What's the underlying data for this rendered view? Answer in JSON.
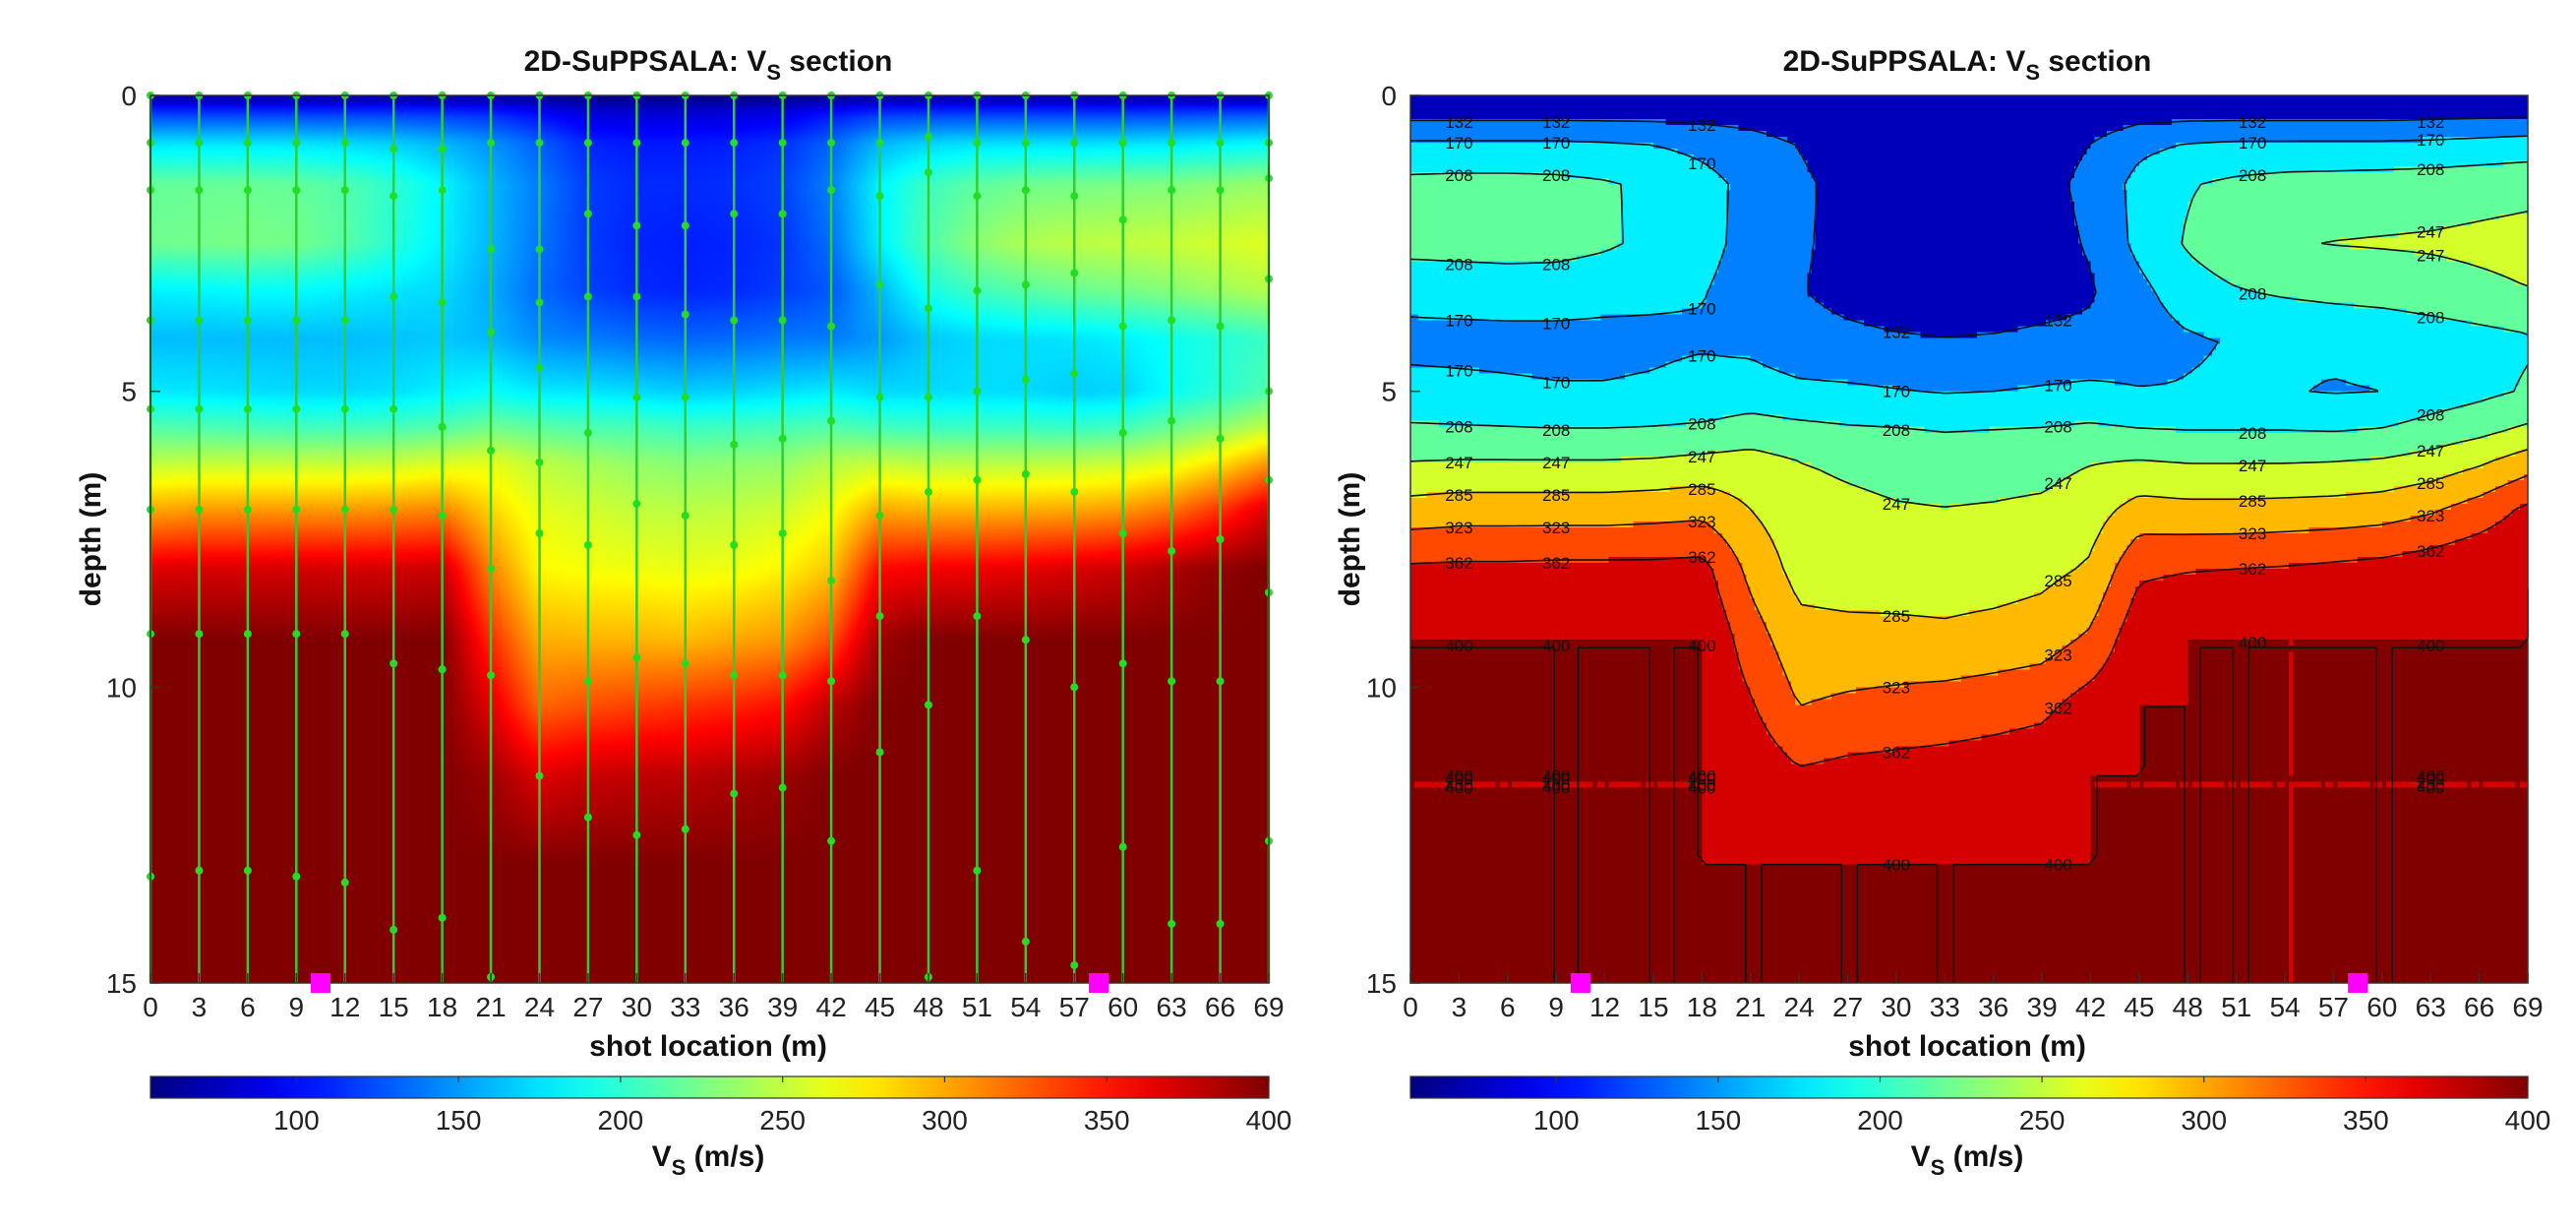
{
  "figure": {
    "panels": [
      {
        "id": "left",
        "title_main": "2D-SuPPSALA: V",
        "title_sub": "S",
        "title_tail": " section",
        "style": "smooth",
        "xlabel": "shot location (m)",
        "ylabel": "depth (m)",
        "colorbar_label_main": "V",
        "colorbar_label_sub": "S",
        "colorbar_label_tail": " (m/s)"
      },
      {
        "id": "right",
        "title_main": "2D-SuPPSALA: V",
        "title_sub": "S",
        "title_tail": " section",
        "style": "contour",
        "xlabel": "shot location (m)",
        "ylabel": "depth (m)",
        "colorbar_label_main": "V",
        "colorbar_label_sub": "S",
        "colorbar_label_tail": " (m/s)"
      }
    ]
  },
  "chart_data": {
    "type": "heatmap",
    "x_ticks": [
      0,
      3,
      6,
      9,
      12,
      15,
      18,
      21,
      24,
      27,
      30,
      33,
      36,
      39,
      42,
      45,
      48,
      51,
      54,
      57,
      60,
      63,
      66,
      69
    ],
    "y_ticks": [
      0,
      5,
      10,
      15
    ],
    "xlim": [
      0,
      69
    ],
    "ylim": [
      0,
      15
    ],
    "y_reversed": true,
    "colormap": "jet",
    "clim": [
      55,
      400
    ],
    "colorbar_ticks": [
      100,
      150,
      200,
      250,
      300,
      350,
      400
    ],
    "contour_levels": [
      132,
      170,
      208,
      247,
      285,
      323,
      362,
      400
    ],
    "shot_markers": {
      "x": [
        10.5,
        58.5
      ],
      "depth": 15,
      "color": "#ff00ff"
    },
    "grid_x": [
      0,
      3,
      6,
      9,
      12,
      15,
      18,
      21,
      24,
      27,
      30,
      33,
      36,
      39,
      42,
      45,
      48,
      51,
      54,
      57,
      60,
      63,
      66,
      69
    ],
    "grid_depth": [
      0,
      0.3,
      0.8,
      1.5,
      2.5,
      3.3,
      4.1,
      5.0,
      5.6,
      6.2,
      7.0,
      8.0,
      9.2,
      10.3,
      11.5,
      13.0,
      15.0
    ],
    "vs_profiles": [
      [
        62,
        118,
        175,
        218,
        222,
        180,
        162,
        178,
        212,
        248,
        300,
        368,
        400,
        400,
        400,
        400,
        400
      ],
      [
        62,
        118,
        175,
        220,
        224,
        182,
        162,
        176,
        210,
        250,
        305,
        370,
        400,
        400,
        400,
        400,
        400
      ],
      [
        62,
        118,
        175,
        220,
        226,
        184,
        162,
        174,
        208,
        250,
        305,
        370,
        400,
        400,
        400,
        400,
        400
      ],
      [
        62,
        118,
        175,
        218,
        224,
        184,
        162,
        172,
        206,
        250,
        305,
        372,
        400,
        400,
        400,
        400,
        400
      ],
      [
        62,
        118,
        172,
        212,
        214,
        180,
        162,
        172,
        206,
        250,
        305,
        372,
        400,
        400,
        400,
        400,
        400
      ],
      [
        62,
        118,
        168,
        200,
        198,
        176,
        164,
        174,
        208,
        252,
        308,
        372,
        400,
        400,
        400,
        400,
        400
      ],
      [
        62,
        116,
        160,
        182,
        180,
        172,
        166,
        180,
        212,
        258,
        312,
        375,
        400,
        400,
        400,
        400,
        400
      ],
      [
        62,
        112,
        148,
        160,
        160,
        156,
        160,
        186,
        222,
        262,
        285,
        312,
        342,
        366,
        390,
        400,
        400
      ],
      [
        60,
        100,
        130,
        140,
        138,
        134,
        145,
        178,
        215,
        248,
        262,
        272,
        298,
        322,
        368,
        400,
        400
      ],
      [
        58,
        86,
        110,
        118,
        118,
        120,
        140,
        176,
        210,
        240,
        256,
        268,
        296,
        330,
        375,
        400,
        400
      ],
      [
        58,
        84,
        106,
        112,
        110,
        112,
        135,
        172,
        208,
        234,
        250,
        266,
        296,
        335,
        378,
        400,
        400
      ],
      [
        58,
        84,
        106,
        112,
        108,
        110,
        132,
        168,
        204,
        230,
        248,
        264,
        294,
        340,
        380,
        400,
        400
      ],
      [
        58,
        86,
        108,
        114,
        110,
        112,
        134,
        170,
        206,
        232,
        250,
        266,
        300,
        345,
        385,
        400,
        400
      ],
      [
        58,
        90,
        114,
        120,
        116,
        118,
        138,
        174,
        208,
        234,
        254,
        274,
        306,
        352,
        390,
        400,
        400
      ],
      [
        60,
        104,
        132,
        142,
        136,
        128,
        140,
        178,
        212,
        246,
        268,
        290,
        330,
        380,
        400,
        400,
        400
      ],
      [
        62,
        116,
        160,
        182,
        180,
        160,
        150,
        172,
        206,
        250,
        300,
        355,
        390,
        400,
        400,
        400,
        400
      ],
      [
        62,
        118,
        170,
        205,
        212,
        192,
        166,
        172,
        204,
        246,
        296,
        360,
        400,
        400,
        400,
        400,
        400
      ],
      [
        62,
        118,
        174,
        216,
        232,
        206,
        172,
        174,
        204,
        246,
        296,
        362,
        400,
        400,
        400,
        400,
        400
      ],
      [
        62,
        118,
        174,
        222,
        244,
        214,
        174,
        172,
        204,
        246,
        298,
        365,
        400,
        400,
        400,
        400,
        400
      ],
      [
        62,
        118,
        174,
        224,
        248,
        220,
        176,
        168,
        202,
        248,
        300,
        370,
        400,
        400,
        400,
        400,
        400
      ],
      [
        62,
        118,
        174,
        226,
        250,
        224,
        180,
        170,
        206,
        252,
        305,
        375,
        400,
        400,
        400,
        400,
        400
      ],
      [
        62,
        120,
        176,
        228,
        252,
        230,
        188,
        186,
        220,
        262,
        318,
        385,
        400,
        400,
        400,
        400,
        400
      ],
      [
        62,
        122,
        180,
        232,
        256,
        238,
        196,
        198,
        232,
        280,
        340,
        395,
        400,
        400,
        400,
        400,
        400
      ],
      [
        62,
        124,
        184,
        236,
        260,
        246,
        204,
        212,
        250,
        305,
        370,
        400,
        400,
        400,
        400,
        400,
        400
      ]
    ],
    "layer_dots_depth": [
      [
        0,
        0.8,
        1.6,
        3.8,
        5.3,
        7.0,
        9.1,
        13.2
      ],
      [
        0,
        0.8,
        1.6,
        3.8,
        5.3,
        7.0,
        9.1,
        13.1
      ],
      [
        0,
        0.8,
        1.6,
        3.8,
        5.3,
        7.0,
        9.1,
        13.1
      ],
      [
        0,
        0.8,
        1.6,
        3.8,
        5.3,
        7.0,
        9.1,
        13.2
      ],
      [
        0,
        0.8,
        1.6,
        3.8,
        5.3,
        7.0,
        9.1,
        13.3
      ],
      [
        0,
        0.9,
        1.7,
        3.4,
        5.3,
        7.0,
        9.6,
        14.1
      ],
      [
        0,
        0.9,
        1.6,
        3.5,
        5.6,
        7.1,
        9.7,
        13.9
      ],
      [
        0,
        0.8,
        2.6,
        4.0,
        6.0,
        8.0,
        9.8,
        14.9
      ],
      [
        0,
        0.8,
        2.6,
        3.5,
        4.6,
        6.2,
        7.4,
        11.5
      ],
      [
        0,
        0.8,
        2.0,
        3.4,
        5.7,
        7.6,
        9.9,
        12.2
      ],
      [
        0,
        0.8,
        2.2,
        3.4,
        5.1,
        6.9,
        9.5,
        12.5
      ],
      [
        0,
        0.8,
        2.2,
        3.7,
        5.1,
        7.1,
        9.6,
        12.4
      ],
      [
        0,
        0.8,
        2.0,
        3.8,
        5.9,
        7.6,
        9.8,
        11.8
      ],
      [
        0,
        0.8,
        2.0,
        3.8,
        5.8,
        7.4,
        9.8,
        11.7
      ],
      [
        0,
        0.8,
        1.6,
        3.9,
        5.5,
        8.2,
        9.9,
        12.6
      ],
      [
        0,
        0.8,
        1.7,
        3.2,
        5.1,
        7.1,
        8.8,
        11.1
      ],
      [
        0,
        0.7,
        1.3,
        3.6,
        5.1,
        6.7,
        10.3,
        14.9
      ],
      [
        0,
        0.8,
        1.7,
        3.3,
        5.0,
        6.5,
        8.8,
        13.1
      ],
      [
        0,
        0.8,
        1.6,
        3.2,
        4.8,
        6.4,
        9.2,
        14.3
      ],
      [
        0,
        0.8,
        1.7,
        3.0,
        4.7,
        6.7,
        10.0,
        14.7
      ],
      [
        0,
        0.8,
        2.1,
        3.9,
        5.7,
        7.4,
        9.6,
        12.7
      ],
      [
        0,
        0.8,
        1.6,
        3.8,
        5.5,
        7.7,
        9.9,
        14.0
      ],
      [
        0,
        0.8,
        1.6,
        3.9,
        5.8,
        7.5,
        9.9,
        14.0
      ],
      [
        0,
        0.8,
        1.4,
        3.1,
        5.0,
        6.5,
        8.4,
        12.6
      ]
    ]
  }
}
